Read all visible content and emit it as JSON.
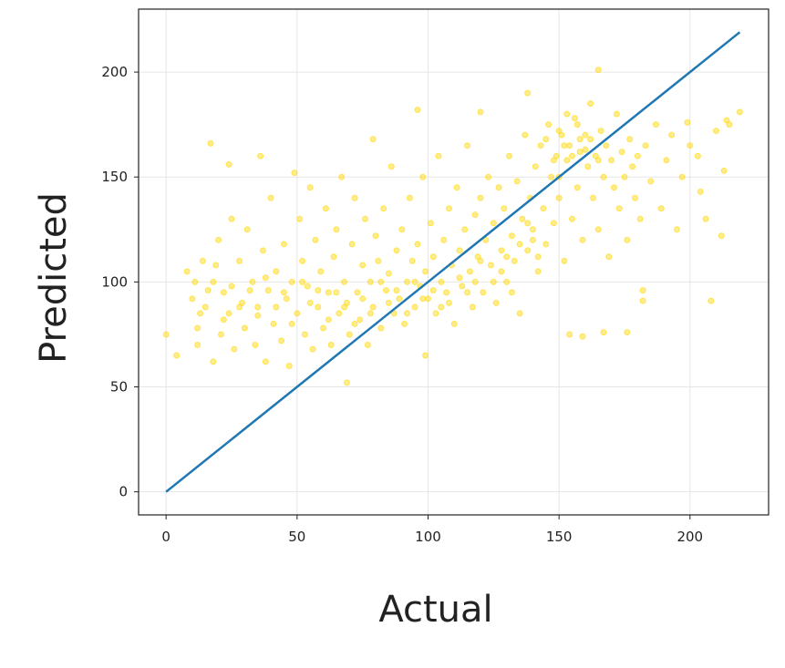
{
  "chart_data": {
    "type": "scatter",
    "title": "",
    "xlabel": "Actual",
    "ylabel": "Predicted",
    "xlim": [
      -10.5,
      230
    ],
    "ylim": [
      -11,
      230
    ],
    "xticks": [
      0,
      50,
      100,
      150,
      200
    ],
    "yticks": [
      0,
      50,
      100,
      150,
      200
    ],
    "grid": true,
    "point_color": "#FFD700",
    "line_color": "#1F77B4",
    "reference_line": {
      "x": [
        0,
        219
      ],
      "y": [
        0,
        219
      ]
    },
    "points": [
      [
        0,
        75
      ],
      [
        4,
        65
      ],
      [
        17,
        166
      ],
      [
        24,
        156
      ],
      [
        36,
        160
      ],
      [
        49,
        152
      ],
      [
        79,
        168
      ],
      [
        96,
        182
      ],
      [
        120,
        181
      ],
      [
        138,
        190
      ],
      [
        165,
        201
      ],
      [
        208,
        91
      ],
      [
        69,
        52
      ],
      [
        99,
        65
      ],
      [
        176,
        76
      ],
      [
        167,
        76
      ],
      [
        159,
        74
      ],
      [
        154,
        75
      ],
      [
        213,
        153
      ],
      [
        214,
        177
      ],
      [
        212,
        122
      ],
      [
        219,
        181
      ],
      [
        204,
        143
      ],
      [
        199,
        176
      ],
      [
        182,
        91
      ],
      [
        182,
        96
      ],
      [
        8,
        105
      ],
      [
        10,
        92
      ],
      [
        12,
        78
      ],
      [
        12,
        70
      ],
      [
        14,
        110
      ],
      [
        15,
        88
      ],
      [
        18,
        100
      ],
      [
        18,
        62
      ],
      [
        20,
        120
      ],
      [
        21,
        75
      ],
      [
        22,
        95
      ],
      [
        24,
        85
      ],
      [
        25,
        130
      ],
      [
        26,
        68
      ],
      [
        28,
        110
      ],
      [
        29,
        90
      ],
      [
        30,
        78
      ],
      [
        31,
        125
      ],
      [
        33,
        100
      ],
      [
        34,
        70
      ],
      [
        35,
        88
      ],
      [
        37,
        115
      ],
      [
        38,
        62
      ],
      [
        39,
        96
      ],
      [
        40,
        140
      ],
      [
        41,
        80
      ],
      [
        42,
        105
      ],
      [
        44,
        72
      ],
      [
        45,
        118
      ],
      [
        46,
        92
      ],
      [
        47,
        60
      ],
      [
        48,
        100
      ],
      [
        50,
        85
      ],
      [
        51,
        130
      ],
      [
        52,
        110
      ],
      [
        53,
        75
      ],
      [
        54,
        98
      ],
      [
        55,
        145
      ],
      [
        56,
        68
      ],
      [
        57,
        120
      ],
      [
        58,
        88
      ],
      [
        59,
        105
      ],
      [
        60,
        78
      ],
      [
        61,
        135
      ],
      [
        62,
        95
      ],
      [
        63,
        70
      ],
      [
        64,
        112
      ],
      [
        65,
        125
      ],
      [
        66,
        85
      ],
      [
        67,
        150
      ],
      [
        68,
        100
      ],
      [
        69,
        90
      ],
      [
        70,
        75
      ],
      [
        71,
        118
      ],
      [
        72,
        140
      ],
      [
        73,
        95
      ],
      [
        74,
        82
      ],
      [
        75,
        108
      ],
      [
        76,
        130
      ],
      [
        77,
        70
      ],
      [
        78,
        100
      ],
      [
        79,
        88
      ],
      [
        80,
        122
      ],
      [
        81,
        110
      ],
      [
        82,
        78
      ],
      [
        83,
        135
      ],
      [
        84,
        96
      ],
      [
        85,
        104
      ],
      [
        86,
        155
      ],
      [
        87,
        85
      ],
      [
        88,
        115
      ],
      [
        89,
        92
      ],
      [
        90,
        125
      ],
      [
        91,
        80
      ],
      [
        92,
        100
      ],
      [
        93,
        140
      ],
      [
        94,
        110
      ],
      [
        95,
        88
      ],
      [
        96,
        118
      ],
      [
        97,
        98
      ],
      [
        98,
        150
      ],
      [
        99,
        105
      ],
      [
        100,
        92
      ],
      [
        101,
        128
      ],
      [
        102,
        112
      ],
      [
        103,
        85
      ],
      [
        104,
        160
      ],
      [
        105,
        100
      ],
      [
        106,
        120
      ],
      [
        107,
        95
      ],
      [
        108,
        135
      ],
      [
        109,
        108
      ],
      [
        110,
        80
      ],
      [
        111,
        145
      ],
      [
        112,
        115
      ],
      [
        113,
        98
      ],
      [
        114,
        125
      ],
      [
        115,
        165
      ],
      [
        116,
        105
      ],
      [
        117,
        88
      ],
      [
        118,
        132
      ],
      [
        119,
        112
      ],
      [
        120,
        140
      ],
      [
        121,
        95
      ],
      [
        122,
        120
      ],
      [
        123,
        150
      ],
      [
        124,
        108
      ],
      [
        125,
        128
      ],
      [
        126,
        90
      ],
      [
        127,
        145
      ],
      [
        128,
        115
      ],
      [
        129,
        135
      ],
      [
        130,
        100
      ],
      [
        131,
        160
      ],
      [
        132,
        122
      ],
      [
        133,
        110
      ],
      [
        134,
        148
      ],
      [
        135,
        85
      ],
      [
        136,
        130
      ],
      [
        137,
        170
      ],
      [
        138,
        115
      ],
      [
        139,
        140
      ],
      [
        140,
        125
      ],
      [
        141,
        155
      ],
      [
        142,
        105
      ],
      [
        143,
        165
      ],
      [
        144,
        135
      ],
      [
        145,
        118
      ],
      [
        146,
        175
      ],
      [
        147,
        150
      ],
      [
        148,
        128
      ],
      [
        149,
        160
      ],
      [
        150,
        140
      ],
      [
        151,
        170
      ],
      [
        152,
        110
      ],
      [
        153,
        158
      ],
      [
        154,
        165
      ],
      [
        155,
        130
      ],
      [
        156,
        178
      ],
      [
        157,
        145
      ],
      [
        158,
        162
      ],
      [
        159,
        120
      ],
      [
        160,
        170
      ],
      [
        161,
        155
      ],
      [
        162,
        185
      ],
      [
        163,
        140
      ],
      [
        164,
        160
      ],
      [
        165,
        125
      ],
      [
        166,
        172
      ],
      [
        167,
        150
      ],
      [
        168,
        165
      ],
      [
        169,
        112
      ],
      [
        170,
        158
      ],
      [
        171,
        145
      ],
      [
        172,
        180
      ],
      [
        173,
        135
      ],
      [
        174,
        162
      ],
      [
        175,
        150
      ],
      [
        176,
        120
      ],
      [
        177,
        168
      ],
      [
        178,
        155
      ],
      [
        179,
        140
      ],
      [
        180,
        160
      ],
      [
        181,
        130
      ],
      [
        183,
        165
      ],
      [
        185,
        148
      ],
      [
        187,
        175
      ],
      [
        189,
        135
      ],
      [
        191,
        158
      ],
      [
        193,
        170
      ],
      [
        195,
        125
      ],
      [
        197,
        150
      ],
      [
        200,
        165
      ],
      [
        203,
        160
      ],
      [
        206,
        130
      ],
      [
        210,
        172
      ],
      [
        215,
        175
      ],
      [
        145,
        168
      ],
      [
        150,
        172
      ],
      [
        152,
        165
      ],
      [
        155,
        160
      ],
      [
        157,
        175
      ],
      [
        158,
        168
      ],
      [
        160,
        163
      ],
      [
        148,
        158
      ],
      [
        153,
        180
      ],
      [
        162,
        168
      ],
      [
        165,
        158
      ],
      [
        150,
        150
      ],
      [
        140,
        120
      ],
      [
        142,
        112
      ],
      [
        138,
        128
      ],
      [
        135,
        118
      ],
      [
        130,
        112
      ],
      [
        128,
        105
      ],
      [
        132,
        95
      ],
      [
        125,
        100
      ],
      [
        120,
        110
      ],
      [
        118,
        100
      ],
      [
        115,
        95
      ],
      [
        112,
        102
      ],
      [
        108,
        90
      ],
      [
        105,
        88
      ],
      [
        102,
        96
      ],
      [
        98,
        92
      ],
      [
        95,
        100
      ],
      [
        92,
        85
      ],
      [
        88,
        96
      ],
      [
        85,
        90
      ],
      [
        82,
        100
      ],
      [
        78,
        85
      ],
      [
        75,
        92
      ],
      [
        72,
        80
      ],
      [
        68,
        88
      ],
      [
        65,
        95
      ],
      [
        62,
        82
      ],
      [
        58,
        96
      ],
      [
        55,
        90
      ],
      [
        52,
        100
      ],
      [
        48,
        80
      ],
      [
        45,
        95
      ],
      [
        42,
        88
      ],
      [
        38,
        102
      ],
      [
        35,
        84
      ],
      [
        32,
        96
      ],
      [
        28,
        88
      ],
      [
        25,
        98
      ],
      [
        22,
        82
      ],
      [
        19,
        108
      ],
      [
        16,
        96
      ],
      [
        13,
        85
      ],
      [
        11,
        100
      ]
    ]
  }
}
